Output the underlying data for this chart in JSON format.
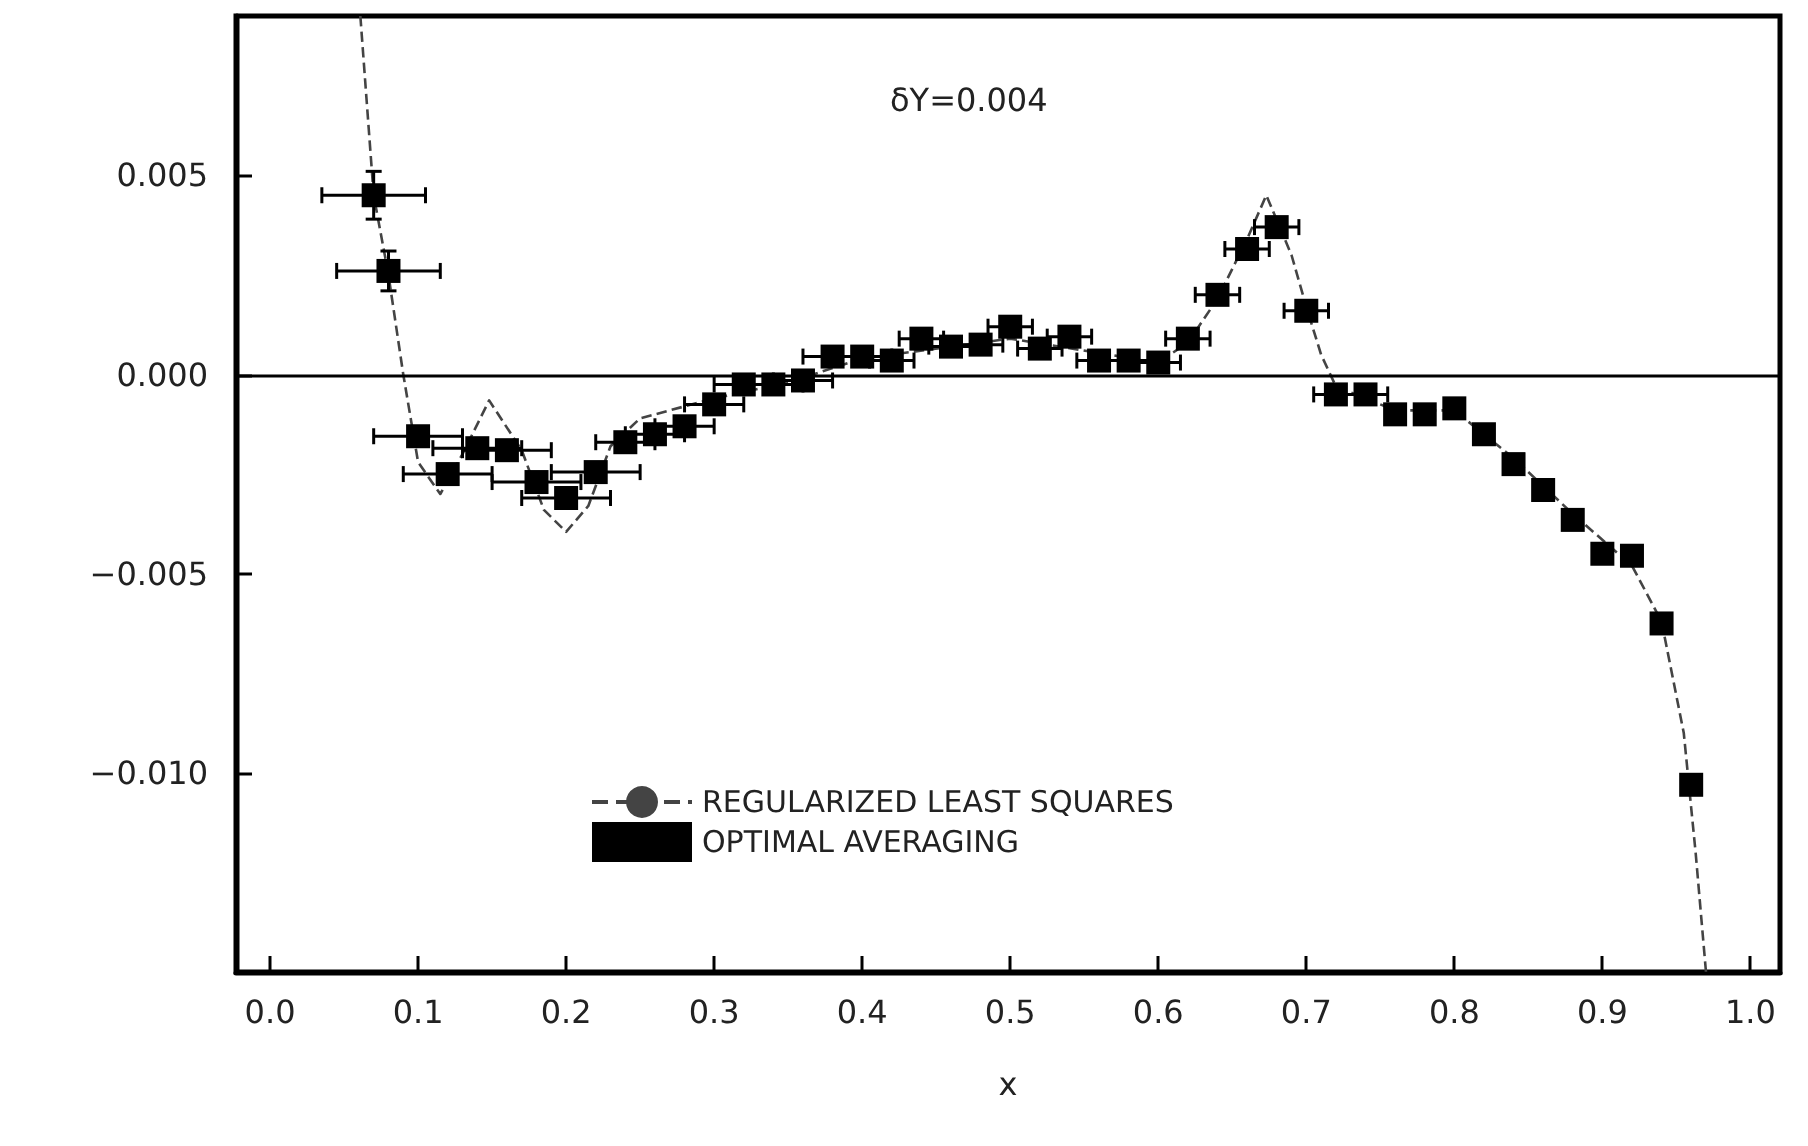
{
  "chart_data": {
    "type": "scatter",
    "xlabel": "x",
    "annotations": [
      "δY=0.004"
    ],
    "xlim": [
      -0.023,
      1.02
    ],
    "ylim": [
      -0.015,
      0.009
    ],
    "xticks": [
      {
        "value": 0,
        "label": "0.0"
      },
      {
        "value": 0.1,
        "label": "0.1"
      },
      {
        "value": 0.2,
        "label": "0.2"
      },
      {
        "value": 0.3,
        "label": "0.3"
      },
      {
        "value": 0.4,
        "label": "0.4"
      },
      {
        "value": 0.5,
        "label": "0.5"
      },
      {
        "value": 0.6,
        "label": "0.6"
      },
      {
        "value": 0.7,
        "label": "0.7"
      },
      {
        "value": 0.8,
        "label": "0.8"
      },
      {
        "value": 0.9,
        "label": "0.9"
      },
      {
        "value": 1,
        "label": "1.0"
      }
    ],
    "yticks": [
      {
        "value": -0.01,
        "label": "−0.010"
      },
      {
        "value": -0.005,
        "label": "−0.005"
      },
      {
        "value": 0,
        "label": "0.000"
      },
      {
        "value": 0.005,
        "label": "0.005"
      }
    ],
    "grid": false,
    "legend": "bottom",
    "ref_lines": [
      {
        "axis": "y",
        "value": 0,
        "color": "#000000"
      }
    ],
    "series": [
      {
        "name": "REGULARIZED LEAST SQUARES",
        "type": "line",
        "line_style": "dashed",
        "marker": "none",
        "color": "#444444",
        "x": [
          0.061,
          0.07,
          0.08,
          0.09,
          0.1,
          0.115,
          0.13,
          0.148,
          0.17,
          0.185,
          0.2,
          0.215,
          0.23,
          0.25,
          0.3,
          0.35,
          0.4,
          0.5,
          0.6,
          0.62,
          0.64,
          0.66,
          0.673,
          0.69,
          0.7,
          0.71,
          0.72,
          0.74,
          0.76,
          0.8,
          0.84,
          0.88,
          0.92,
          0.94,
          0.955,
          0.963,
          0.97
        ],
        "values": [
          0.009,
          0.0045,
          0.0025,
          0.0,
          -0.0022,
          -0.003,
          -0.002,
          -0.00065,
          -0.0019,
          -0.0034,
          -0.00395,
          -0.0033,
          -0.0018,
          -0.0011,
          -0.0006,
          -0.0002,
          0.0004,
          0.0009,
          0.0003,
          0.0008,
          0.0019,
          0.0034,
          0.0045,
          0.003,
          0.0017,
          0.0005,
          -0.0003,
          -0.0006,
          -0.0009,
          -0.0009,
          -0.0021,
          -0.0035,
          -0.0048,
          -0.0062,
          -0.009,
          -0.012,
          -0.015
        ]
      },
      {
        "name": "OPTIMAL AVERAGING",
        "type": "scatter",
        "marker": "square",
        "color": "#000000",
        "x": [
          0.07,
          0.08,
          0.1,
          0.12,
          0.14,
          0.16,
          0.18,
          0.2,
          0.22,
          0.24,
          0.26,
          0.28,
          0.3,
          0.32,
          0.34,
          0.36,
          0.38,
          0.4,
          0.42,
          0.44,
          0.46,
          0.48,
          0.5,
          0.52,
          0.54,
          0.56,
          0.58,
          0.6,
          0.62,
          0.64,
          0.66,
          0.68,
          0.7,
          0.72,
          0.74,
          0.76,
          0.78,
          0.8,
          0.82,
          0.84,
          0.86,
          0.88,
          0.9,
          0.92,
          0.94,
          0.96
        ],
        "values": [
          0.0045,
          0.0026,
          -0.00155,
          -0.0025,
          -0.00185,
          -0.0019,
          -0.0027,
          -0.0031,
          -0.00245,
          -0.0017,
          -0.0015,
          -0.0013,
          -0.00075,
          -0.00025,
          -0.00025,
          -0.00015,
          0.00045,
          0.00045,
          0.00035,
          0.0009,
          0.0007,
          0.00075,
          0.0012,
          0.00065,
          0.00095,
          0.00035,
          0.00035,
          0.0003,
          0.0009,
          0.002,
          0.00315,
          0.0037,
          0.0016,
          -0.0005,
          -0.0005,
          -0.001,
          -0.001,
          -0.00085,
          -0.0015,
          -0.00225,
          -0.0029,
          -0.00365,
          -0.0045,
          -0.00455,
          -0.00625,
          -0.0103
        ],
        "errors": [
          0.0006,
          0.0005,
          0.0002,
          0.0002,
          0.0002,
          0.0002,
          0.0002,
          0.0002,
          0.0002,
          0.0002,
          0.0002,
          0.0002,
          0.0002,
          0.0002,
          0.0002,
          0.0002,
          0.0002,
          0.0002,
          0.0002,
          0.0002,
          0.0002,
          0.0002,
          0.0002,
          0.0002,
          0.0002,
          0.0002,
          0.0002,
          0.0002,
          0.0002,
          0.0002,
          0.0002,
          0.0002,
          0.0002,
          0.0002,
          0.0002,
          null,
          null,
          null,
          null,
          null,
          null,
          null,
          null,
          null,
          null,
          null
        ],
        "xerrors": [
          0.035,
          0.035,
          0.03,
          0.03,
          0.03,
          0.03,
          0.03,
          0.03,
          0.03,
          0.02,
          0.02,
          0.02,
          0.02,
          0.02,
          0.02,
          0.02,
          0.02,
          0.02,
          0.015,
          0.015,
          0.015,
          0.015,
          0.015,
          0.015,
          0.015,
          0.015,
          0.015,
          0.015,
          0.015,
          0.015,
          0.015,
          0.015,
          0.015,
          0.015,
          0.015,
          null,
          null,
          null,
          null,
          null,
          null,
          null,
          null,
          null,
          null,
          null
        ]
      }
    ]
  }
}
